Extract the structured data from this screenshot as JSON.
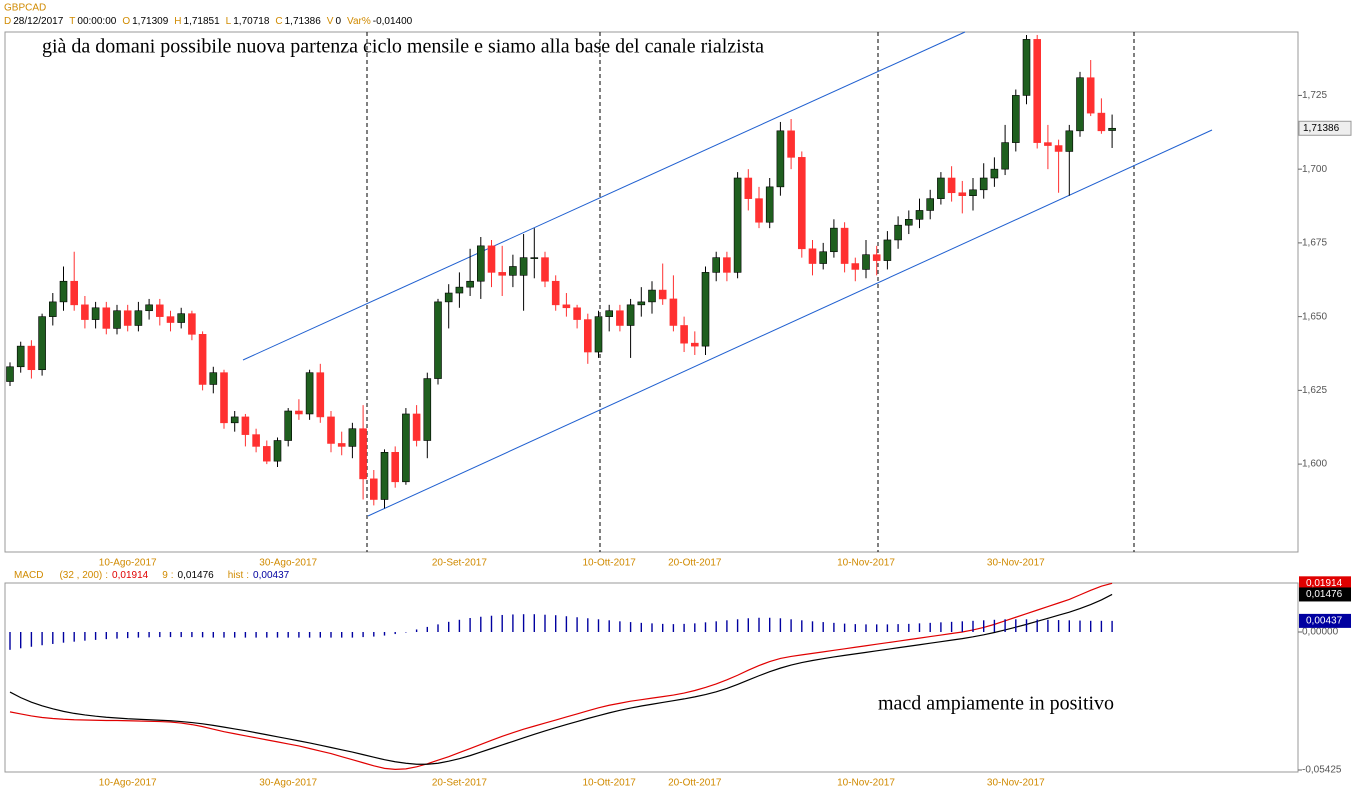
{
  "symbol": "GBPCAD",
  "header": [
    {
      "key": "D",
      "value": "28/12/2017"
    },
    {
      "key": "T",
      "value": "00:00:00"
    },
    {
      "key": "O",
      "value": "1,71309"
    },
    {
      "key": "H",
      "value": "1,71851"
    },
    {
      "key": "L",
      "value": "1,70718"
    },
    {
      "key": "C",
      "value": "1,71386"
    },
    {
      "key": "V",
      "value": "0"
    },
    {
      "key": "Var%",
      "value": "-0,01400"
    }
  ],
  "annotations": [
    "già da domani possibile nuova partenza ciclo mensile e siamo alla base del canale rialzista",
    "macd ampiamente in positivo"
  ],
  "chart_data": [
    {
      "type": "candlestick",
      "up_color": "#1f5f1f",
      "down_color": "#ff3030",
      "ylim": [
        1.5702,
        1.7465
      ],
      "yticks": [
        {
          "value": 1.6,
          "label": "1,600"
        },
        {
          "value": 1.625,
          "label": "1,625"
        },
        {
          "value": 1.65,
          "label": "1,650"
        },
        {
          "value": 1.675,
          "label": "1,675"
        },
        {
          "value": 1.7,
          "label": "1,700"
        },
        {
          "value": 1.725,
          "label": "1,725"
        }
      ],
      "last_label": "1,71386",
      "categories": [
        null,
        null,
        null,
        null,
        null,
        null,
        null,
        null,
        null,
        null,
        null,
        "10-Ago-2017",
        null,
        null,
        null,
        null,
        null,
        null,
        null,
        null,
        null,
        null,
        null,
        null,
        null,
        null,
        "30-Ago-2017",
        null,
        null,
        null,
        null,
        null,
        null,
        null,
        null,
        null,
        null,
        null,
        null,
        null,
        null,
        null,
        "20-Set-2017",
        null,
        null,
        null,
        null,
        null,
        null,
        null,
        null,
        null,
        null,
        null,
        null,
        null,
        "10-Ott-2017",
        null,
        null,
        null,
        null,
        null,
        null,
        null,
        "20-Ott-2017",
        null,
        null,
        null,
        null,
        null,
        null,
        null,
        null,
        null,
        null,
        null,
        null,
        null,
        null,
        null,
        "10-Nov-2017",
        null,
        null,
        null,
        null,
        null,
        null,
        null,
        null,
        null,
        null,
        null,
        null,
        null,
        "30-Nov-2017",
        null,
        null,
        null,
        null,
        null,
        null,
        null,
        null,
        null
      ],
      "ohlc": [
        [
          1.628,
          1.6345,
          1.6265,
          1.633
        ],
        [
          1.633,
          1.6415,
          1.631,
          1.64
        ],
        [
          1.64,
          1.642,
          1.629,
          1.632
        ],
        [
          1.632,
          1.651,
          1.63,
          1.65
        ],
        [
          1.65,
          1.658,
          1.647,
          1.655
        ],
        [
          1.655,
          1.667,
          1.652,
          1.662
        ],
        [
          1.662,
          1.672,
          1.652,
          1.654
        ],
        [
          1.654,
          1.657,
          1.646,
          1.649
        ],
        [
          1.649,
          1.655,
          1.646,
          1.653
        ],
        [
          1.653,
          1.655,
          1.644,
          1.646
        ],
        [
          1.646,
          1.654,
          1.644,
          1.652
        ],
        [
          1.652,
          1.654,
          1.645,
          1.647
        ],
        [
          1.647,
          1.655,
          1.645,
          1.652
        ],
        [
          1.652,
          1.656,
          1.649,
          1.654
        ],
        [
          1.654,
          1.656,
          1.647,
          1.65
        ],
        [
          1.65,
          1.652,
          1.645,
          1.648
        ],
        [
          1.648,
          1.653,
          1.646,
          1.651
        ],
        [
          1.651,
          1.652,
          1.642,
          1.644
        ],
        [
          1.644,
          1.645,
          1.625,
          1.627
        ],
        [
          1.627,
          1.633,
          1.624,
          1.631
        ],
        [
          1.631,
          1.632,
          1.612,
          1.614
        ],
        [
          1.614,
          1.618,
          1.611,
          1.616
        ],
        [
          1.616,
          1.617,
          1.606,
          1.61
        ],
        [
          1.61,
          1.612,
          1.604,
          1.606
        ],
        [
          1.606,
          1.608,
          1.6,
          1.601
        ],
        [
          1.601,
          1.609,
          1.599,
          1.608
        ],
        [
          1.608,
          1.619,
          1.606,
          1.618
        ],
        [
          1.618,
          1.622,
          1.615,
          1.617
        ],
        [
          1.617,
          1.632,
          1.615,
          1.631
        ],
        [
          1.631,
          1.634,
          1.614,
          1.616
        ],
        [
          1.616,
          1.618,
          1.604,
          1.607
        ],
        [
          1.607,
          1.611,
          1.603,
          1.606
        ],
        [
          1.606,
          1.614,
          1.602,
          1.612
        ],
        [
          1.612,
          1.62,
          1.588,
          1.595
        ],
        [
          1.595,
          1.598,
          1.586,
          1.588
        ],
        [
          1.588,
          1.605,
          1.585,
          1.604
        ],
        [
          1.604,
          1.606,
          1.592,
          1.594
        ],
        [
          1.594,
          1.619,
          1.593,
          1.617
        ],
        [
          1.617,
          1.62,
          1.606,
          1.608
        ],
        [
          1.608,
          1.631,
          1.602,
          1.629
        ],
        [
          1.629,
          1.656,
          1.627,
          1.655
        ],
        [
          1.655,
          1.661,
          1.646,
          1.658
        ],
        [
          1.658,
          1.665,
          1.653,
          1.66
        ],
        [
          1.66,
          1.673,
          1.657,
          1.662
        ],
        [
          1.662,
          1.677,
          1.656,
          1.674
        ],
        [
          1.674,
          1.676,
          1.66,
          1.665
        ],
        [
          1.665,
          1.674,
          1.657,
          1.664
        ],
        [
          1.664,
          1.671,
          1.66,
          1.667
        ],
        [
          1.664,
          1.678,
          1.652,
          1.67
        ],
        [
          1.67,
          1.68,
          1.663,
          1.67
        ],
        [
          1.67,
          1.672,
          1.66,
          1.662
        ],
        [
          1.662,
          1.664,
          1.652,
          1.654
        ],
        [
          1.654,
          1.658,
          1.65,
          1.653
        ],
        [
          1.653,
          1.654,
          1.646,
          1.649
        ],
        [
          1.649,
          1.651,
          1.634,
          1.638
        ],
        [
          1.638,
          1.652,
          1.636,
          1.65
        ],
        [
          1.65,
          1.654,
          1.645,
          1.652
        ],
        [
          1.652,
          1.654,
          1.645,
          1.647
        ],
        [
          1.647,
          1.656,
          1.636,
          1.654
        ],
        [
          1.654,
          1.66,
          1.65,
          1.655
        ],
        [
          1.655,
          1.662,
          1.651,
          1.659
        ],
        [
          1.659,
          1.668,
          1.654,
          1.656
        ],
        [
          1.656,
          1.664,
          1.645,
          1.647
        ],
        [
          1.647,
          1.65,
          1.638,
          1.641
        ],
        [
          1.641,
          1.645,
          1.637,
          1.64
        ],
        [
          1.64,
          1.667,
          1.637,
          1.665
        ],
        [
          1.665,
          1.672,
          1.662,
          1.67
        ],
        [
          1.67,
          1.672,
          1.662,
          1.665
        ],
        [
          1.665,
          1.699,
          1.663,
          1.697
        ],
        [
          1.697,
          1.7,
          1.686,
          1.69
        ],
        [
          1.69,
          1.694,
          1.68,
          1.682
        ],
        [
          1.682,
          1.697,
          1.68,
          1.694
        ],
        [
          1.694,
          1.716,
          1.691,
          1.713
        ],
        [
          1.713,
          1.717,
          1.7,
          1.704
        ],
        [
          1.704,
          1.706,
          1.67,
          1.673
        ],
        [
          1.673,
          1.676,
          1.664,
          1.668
        ],
        [
          1.668,
          1.675,
          1.666,
          1.672
        ],
        [
          1.672,
          1.683,
          1.67,
          1.68
        ],
        [
          1.68,
          1.682,
          1.665,
          1.668
        ],
        [
          1.668,
          1.67,
          1.662,
          1.666
        ],
        [
          1.666,
          1.676,
          1.663,
          1.671
        ],
        [
          1.671,
          1.674,
          1.664,
          1.669
        ],
        [
          1.669,
          1.679,
          1.666,
          1.676
        ],
        [
          1.676,
          1.684,
          1.673,
          1.681
        ],
        [
          1.681,
          1.686,
          1.678,
          1.683
        ],
        [
          1.683,
          1.69,
          1.68,
          1.686
        ],
        [
          1.686,
          1.693,
          1.683,
          1.69
        ],
        [
          1.69,
          1.699,
          1.688,
          1.697
        ],
        [
          1.697,
          1.701,
          1.689,
          1.692
        ],
        [
          1.692,
          1.696,
          1.685,
          1.691
        ],
        [
          1.691,
          1.697,
          1.686,
          1.693
        ],
        [
          1.693,
          1.702,
          1.69,
          1.697
        ],
        [
          1.697,
          1.704,
          1.694,
          1.7
        ],
        [
          1.7,
          1.715,
          1.698,
          1.709
        ],
        [
          1.709,
          1.727,
          1.706,
          1.725
        ],
        [
          1.725,
          1.7455,
          1.722,
          1.744
        ],
        [
          1.744,
          1.7455,
          1.707,
          1.709
        ],
        [
          1.709,
          1.715,
          1.7,
          1.708
        ],
        [
          1.708,
          1.71,
          1.692,
          1.706
        ],
        [
          1.706,
          1.715,
          1.691,
          1.713
        ],
        [
          1.713,
          1.733,
          1.711,
          1.731
        ],
        [
          1.731,
          1.737,
          1.718,
          1.719
        ],
        [
          1.719,
          1.724,
          1.712,
          1.713
        ],
        [
          1.71309,
          1.71851,
          1.70718,
          1.71386
        ]
      ]
    },
    {
      "type": "macd",
      "params": "(32 , 200)",
      "ylim": [
        -0.05425,
        0.0195
      ],
      "yticks": [
        {
          "value": 0,
          "label": "0,00000"
        },
        {
          "value": -0.05425,
          "label": "-0,05425"
        }
      ],
      "series": [
        {
          "name": "MACD",
          "style": "line",
          "color": "#e00000",
          "last_label": "0,01914",
          "values": [
            -0.0314,
            -0.0322,
            -0.033,
            -0.0336,
            -0.034,
            -0.0343,
            -0.0345,
            -0.0346,
            -0.0347,
            -0.0348,
            -0.0348,
            -0.0349,
            -0.035,
            -0.0351,
            -0.0352,
            -0.0354,
            -0.0358,
            -0.0364,
            -0.0372,
            -0.0382,
            -0.0392,
            -0.04,
            -0.0408,
            -0.0416,
            -0.0424,
            -0.0432,
            -0.044,
            -0.0448,
            -0.0458,
            -0.0468,
            -0.0478,
            -0.049,
            -0.0502,
            -0.0514,
            -0.0526,
            -0.0536,
            -0.054,
            -0.0538,
            -0.053,
            -0.0518,
            -0.0504,
            -0.049,
            -0.0474,
            -0.0458,
            -0.0442,
            -0.0426,
            -0.041,
            -0.0396,
            -0.0382,
            -0.037,
            -0.0358,
            -0.0346,
            -0.0334,
            -0.0322,
            -0.031,
            -0.0298,
            -0.0288,
            -0.028,
            -0.0272,
            -0.0266,
            -0.026,
            -0.0254,
            -0.0248,
            -0.024,
            -0.023,
            -0.0218,
            -0.0204,
            -0.0188,
            -0.017,
            -0.015,
            -0.0132,
            -0.0116,
            -0.0104,
            -0.0096,
            -0.009,
            -0.0084,
            -0.0078,
            -0.0072,
            -0.0066,
            -0.006,
            -0.0054,
            -0.0048,
            -0.0042,
            -0.0036,
            -0.003,
            -0.0024,
            -0.0018,
            -0.0012,
            -0.0006,
            0.0,
            0.0008,
            0.0018,
            0.003,
            0.0044,
            0.0058,
            0.0072,
            0.0086,
            0.01,
            0.0114,
            0.0128,
            0.0146,
            0.0164,
            0.018,
            0.01914
          ]
        },
        {
          "name": "9",
          "style": "line",
          "color": "#000000",
          "last_label": "0,01476",
          "values": [
            -0.0236,
            -0.0258,
            -0.0276,
            -0.029,
            -0.0302,
            -0.0312,
            -0.032,
            -0.0326,
            -0.0331,
            -0.0335,
            -0.0338,
            -0.0341,
            -0.0343,
            -0.0345,
            -0.0347,
            -0.0349,
            -0.0352,
            -0.0356,
            -0.0361,
            -0.0367,
            -0.0374,
            -0.0381,
            -0.0388,
            -0.0396,
            -0.0404,
            -0.0412,
            -0.042,
            -0.0428,
            -0.0436,
            -0.0445,
            -0.0454,
            -0.0463,
            -0.0472,
            -0.0482,
            -0.0492,
            -0.0502,
            -0.051,
            -0.0516,
            -0.052,
            -0.052,
            -0.0516,
            -0.0508,
            -0.0498,
            -0.0486,
            -0.0472,
            -0.0458,
            -0.0444,
            -0.043,
            -0.0416,
            -0.0402,
            -0.0389,
            -0.0376,
            -0.0364,
            -0.0352,
            -0.034,
            -0.0329,
            -0.0318,
            -0.0308,
            -0.0299,
            -0.0291,
            -0.0284,
            -0.0277,
            -0.027,
            -0.0263,
            -0.0255,
            -0.0246,
            -0.0235,
            -0.0222,
            -0.0206,
            -0.0189,
            -0.0172,
            -0.0156,
            -0.0142,
            -0.013,
            -0.012,
            -0.0112,
            -0.0105,
            -0.0098,
            -0.0092,
            -0.0086,
            -0.008,
            -0.0074,
            -0.0068,
            -0.0062,
            -0.0056,
            -0.005,
            -0.0044,
            -0.0038,
            -0.0032,
            -0.0026,
            -0.0019,
            -0.0011,
            -0.0002,
            0.0008,
            0.0019,
            0.003,
            0.0042,
            0.0054,
            0.0066,
            0.0078,
            0.0092,
            0.0108,
            0.0126,
            0.01476
          ]
        },
        {
          "name": "hist",
          "style": "bar",
          "color": "#0000a0",
          "last_label": "0,00437",
          "values": [
            -0.007,
            -0.0064,
            -0.0058,
            -0.0052,
            -0.0047,
            -0.0042,
            -0.0038,
            -0.0034,
            -0.0031,
            -0.0028,
            -0.0026,
            -0.0024,
            -0.0022,
            -0.0021,
            -0.002,
            -0.002,
            -0.002,
            -0.002,
            -0.0021,
            -0.0022,
            -0.0022,
            -0.0022,
            -0.0022,
            -0.0022,
            -0.0022,
            -0.0022,
            -0.0022,
            -0.0022,
            -0.0022,
            -0.0022,
            -0.0022,
            -0.0022,
            -0.0022,
            -0.002,
            -0.0018,
            -0.0014,
            -0.0008,
            -0.0002,
            0.001,
            0.002,
            0.003,
            0.004,
            0.0048,
            0.0055,
            0.006,
            0.0064,
            0.0067,
            0.0069,
            0.007,
            0.007,
            0.0068,
            0.0066,
            0.0062,
            0.0058,
            0.0054,
            0.005,
            0.0046,
            0.0042,
            0.0039,
            0.0036,
            0.0034,
            0.0032,
            0.0031,
            0.0032,
            0.0034,
            0.0038,
            0.0042,
            0.0046,
            0.005,
            0.0054,
            0.0056,
            0.0056,
            0.0054,
            0.005,
            0.0046,
            0.0042,
            0.0039,
            0.0036,
            0.0033,
            0.0031,
            0.003,
            0.003,
            0.003,
            0.0031,
            0.0032,
            0.0034,
            0.0036,
            0.0038,
            0.004,
            0.0042,
            0.0044,
            0.0046,
            0.0048,
            0.005,
            0.005,
            0.005,
            0.0049,
            0.0048,
            0.0047,
            0.0046,
            0.0045,
            0.0044,
            0.0044,
            0.00437
          ]
        }
      ]
    }
  ]
}
